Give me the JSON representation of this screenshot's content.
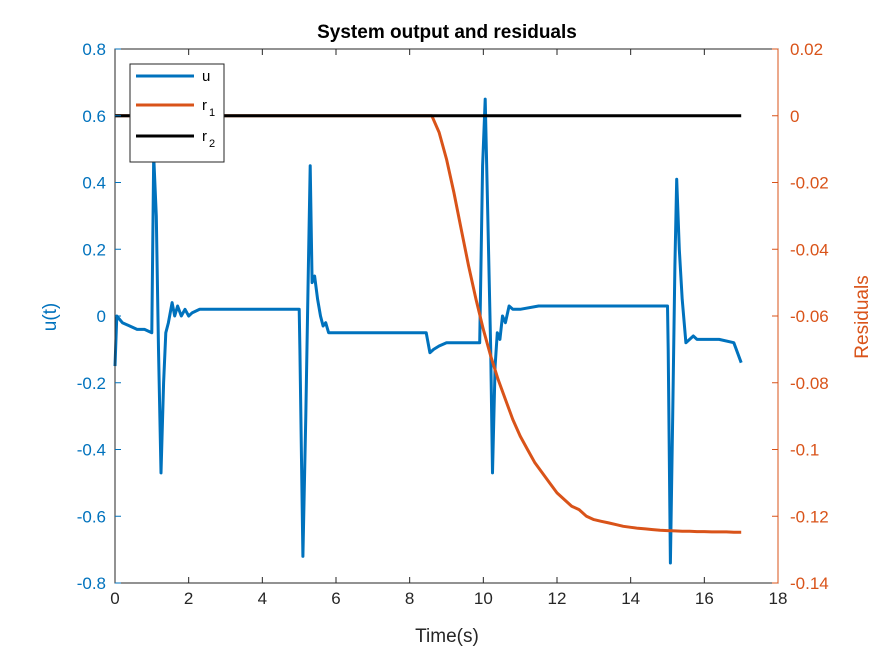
{
  "chart_data": {
    "type": "line",
    "title": "System output and residuals",
    "xlabel": "Time(s)",
    "ylabel_left": "u(t)",
    "ylabel_right": "Residuals",
    "xlim": [
      0,
      18
    ],
    "ylim_left": [
      -0.8,
      0.8
    ],
    "ylim_right": [
      -0.14,
      0.02
    ],
    "x_ticks": [
      0,
      2,
      4,
      6,
      8,
      10,
      12,
      14,
      16,
      18
    ],
    "y_ticks_left": [
      -0.8,
      -0.6,
      -0.4,
      -0.2,
      0,
      0.2,
      0.4,
      0.6,
      0.8
    ],
    "y_ticks_right": [
      -0.14,
      -0.12,
      -0.1,
      -0.08,
      -0.06,
      -0.04,
      -0.02,
      0,
      0.02
    ],
    "grid": false,
    "legend_position": "top-left",
    "colors": {
      "u": "#0072BD",
      "r1": "#D95319",
      "r2": "#000000"
    },
    "legend": [
      {
        "key": "u",
        "label": "u",
        "sub": ""
      },
      {
        "key": "r1",
        "label": "r",
        "sub": "1"
      },
      {
        "key": "r2",
        "label": "r",
        "sub": "2"
      }
    ],
    "series": [
      {
        "key": "u",
        "name": "u",
        "axis": "left",
        "x": [
          0,
          0.05,
          0.2,
          0.4,
          0.6,
          0.8,
          1.0,
          1.05,
          1.12,
          1.18,
          1.25,
          1.32,
          1.38,
          1.45,
          1.55,
          1.62,
          1.7,
          1.8,
          1.9,
          2.0,
          2.1,
          2.3,
          2.6,
          3.0,
          3.5,
          4.0,
          4.5,
          5.0,
          5.02,
          5.1,
          5.18,
          5.25,
          5.3,
          5.35,
          5.42,
          5.5,
          5.58,
          5.65,
          5.72,
          5.8,
          6.0,
          6.5,
          7.0,
          7.5,
          8.0,
          8.45,
          8.55,
          8.65,
          8.8,
          9.0,
          9.5,
          9.9,
          9.98,
          10.05,
          10.12,
          10.2,
          10.25,
          10.32,
          10.38,
          10.45,
          10.52,
          10.6,
          10.7,
          10.8,
          11.0,
          11.5,
          12.0,
          13.0,
          14.0,
          15.0,
          15.02,
          15.08,
          15.14,
          15.2,
          15.25,
          15.32,
          15.4,
          15.5,
          15.6,
          15.7,
          15.8,
          16.0,
          16.4,
          16.8,
          17.0
        ],
        "y": [
          -0.15,
          0.0,
          -0.02,
          -0.03,
          -0.04,
          -0.04,
          -0.05,
          0.48,
          0.3,
          -0.1,
          -0.47,
          -0.2,
          -0.05,
          -0.02,
          0.04,
          0.0,
          0.03,
          0.0,
          0.02,
          0.0,
          0.01,
          0.02,
          0.02,
          0.02,
          0.02,
          0.02,
          0.02,
          0.02,
          -0.1,
          -0.72,
          -0.3,
          0.15,
          0.45,
          0.1,
          0.12,
          0.05,
          0.0,
          -0.03,
          -0.02,
          -0.05,
          -0.05,
          -0.05,
          -0.05,
          -0.05,
          -0.05,
          -0.05,
          -0.11,
          -0.1,
          -0.09,
          -0.08,
          -0.08,
          -0.08,
          0.45,
          0.65,
          0.3,
          -0.1,
          -0.47,
          -0.15,
          -0.05,
          -0.07,
          0.0,
          -0.02,
          0.03,
          0.02,
          0.02,
          0.03,
          0.03,
          0.03,
          0.03,
          0.03,
          -0.1,
          -0.74,
          -0.3,
          0.15,
          0.41,
          0.2,
          0.05,
          -0.08,
          -0.07,
          -0.06,
          -0.07,
          -0.07,
          -0.07,
          -0.08,
          -0.14
        ]
      },
      {
        "key": "r1",
        "name": "r1",
        "axis": "right",
        "x": [
          0,
          8.6,
          8.8,
          9.0,
          9.2,
          9.4,
          9.6,
          9.8,
          10.0,
          10.2,
          10.4,
          10.6,
          10.8,
          11.0,
          11.2,
          11.4,
          11.6,
          11.8,
          12.0,
          12.2,
          12.4,
          12.6,
          12.8,
          13.0,
          13.2,
          13.4,
          13.6,
          13.8,
          14.0,
          14.2,
          14.4,
          14.6,
          14.8,
          15.0,
          15.2,
          15.4,
          15.6,
          15.8,
          16.0,
          16.2,
          16.4,
          16.6,
          16.8,
          17.0
        ],
        "y": [
          0,
          0,
          -0.005,
          -0.013,
          -0.023,
          -0.034,
          -0.045,
          -0.055,
          -0.064,
          -0.072,
          -0.079,
          -0.085,
          -0.091,
          -0.096,
          -0.1,
          -0.104,
          -0.107,
          -0.11,
          -0.113,
          -0.115,
          -0.117,
          -0.118,
          -0.12,
          -0.121,
          -0.1215,
          -0.122,
          -0.1225,
          -0.123,
          -0.1233,
          -0.1236,
          -0.1238,
          -0.124,
          -0.1242,
          -0.1243,
          -0.1244,
          -0.1245,
          -0.1245,
          -0.1246,
          -0.1246,
          -0.1247,
          -0.1247,
          -0.1247,
          -0.1248,
          -0.1248
        ]
      },
      {
        "key": "r2",
        "name": "r2",
        "axis": "right",
        "x": [
          0,
          17
        ],
        "y": [
          0,
          0
        ]
      }
    ]
  }
}
